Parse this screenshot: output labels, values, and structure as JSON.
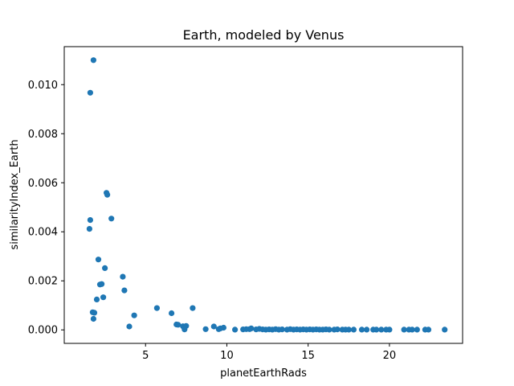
{
  "chart_data": {
    "type": "scatter",
    "title": "Earth, modeled by Venus",
    "xlabel": "planetEarthRads",
    "ylabel": "similarityIndex_Earth",
    "xlim": [
      0.0,
      24.5
    ],
    "ylim": [
      -0.00055,
      0.01155
    ],
    "xticks": [
      5,
      10,
      15,
      20
    ],
    "xtick_labels": [
      "5",
      "10",
      "15",
      "20"
    ],
    "yticks": [
      0.0,
      0.002,
      0.004,
      0.006,
      0.008,
      0.01
    ],
    "ytick_labels": [
      "0.000",
      "0.002",
      "0.004",
      "0.006",
      "0.008",
      "0.010"
    ],
    "grid": false,
    "legend": "none",
    "point_color": "#1f77b4",
    "points": [
      [
        1.8,
        0.011
      ],
      [
        1.6,
        0.00967
      ],
      [
        1.6,
        0.00448
      ],
      [
        1.55,
        0.00412
      ],
      [
        2.6,
        0.00559
      ],
      [
        2.65,
        0.00551
      ],
      [
        2.9,
        0.00454
      ],
      [
        2.1,
        0.00287
      ],
      [
        2.5,
        0.00252
      ],
      [
        3.6,
        0.00217
      ],
      [
        2.2,
        0.00185
      ],
      [
        2.3,
        0.00187
      ],
      [
        3.7,
        0.00161
      ],
      [
        2.4,
        0.00133
      ],
      [
        2.0,
        0.00124
      ],
      [
        1.75,
        0.00072
      ],
      [
        1.85,
        0.0007
      ],
      [
        1.8,
        0.00045
      ],
      [
        4.3,
        0.00059
      ],
      [
        4.0,
        0.00014
      ],
      [
        5.7,
        0.00089
      ],
      [
        6.6,
        0.00068
      ],
      [
        7.9,
        0.00089
      ],
      [
        6.9,
        0.00022
      ],
      [
        7.0,
        0.00021
      ],
      [
        7.3,
        0.00015
      ],
      [
        7.5,
        0.00016
      ],
      [
        7.4,
        2e-05
      ],
      [
        8.7,
        3e-05
      ],
      [
        9.2,
        0.00014
      ],
      [
        9.5,
        3e-05
      ],
      [
        9.6,
        6e-05
      ],
      [
        9.8,
        9e-05
      ],
      [
        10.5,
        1e-05
      ],
      [
        11.0,
        2e-05
      ],
      [
        11.2,
        3e-05
      ],
      [
        11.4,
        3e-05
      ],
      [
        11.5,
        6e-05
      ],
      [
        11.8,
        2e-05
      ],
      [
        12.0,
        4e-05
      ],
      [
        12.2,
        2e-05
      ],
      [
        12.4,
        1e-05
      ],
      [
        12.6,
        2e-05
      ],
      [
        12.8,
        1e-05
      ],
      [
        13.0,
        3e-05
      ],
      [
        13.2,
        1e-05
      ],
      [
        13.4,
        2e-05
      ],
      [
        13.7,
        1e-05
      ],
      [
        13.9,
        3e-05
      ],
      [
        14.1,
        1e-05
      ],
      [
        14.3,
        2e-05
      ],
      [
        14.5,
        1e-05
      ],
      [
        14.7,
        2e-05
      ],
      [
        14.9,
        1e-05
      ],
      [
        15.1,
        2e-05
      ],
      [
        15.3,
        1e-05
      ],
      [
        15.5,
        2e-05
      ],
      [
        15.7,
        1e-05
      ],
      [
        15.9,
        1e-05
      ],
      [
        16.1,
        2e-05
      ],
      [
        16.3,
        1e-05
      ],
      [
        16.6,
        1e-05
      ],
      [
        16.8,
        2e-05
      ],
      [
        17.1,
        1e-05
      ],
      [
        17.3,
        1e-05
      ],
      [
        17.5,
        1e-05
      ],
      [
        17.8,
        1e-05
      ],
      [
        18.3,
        1e-05
      ],
      [
        18.6,
        1e-05
      ],
      [
        19.0,
        1e-05
      ],
      [
        19.2,
        1e-05
      ],
      [
        19.5,
        1e-05
      ],
      [
        19.8,
        1e-05
      ],
      [
        20.0,
        1e-05
      ],
      [
        20.9,
        1e-05
      ],
      [
        21.2,
        1e-05
      ],
      [
        21.4,
        1e-05
      ],
      [
        21.7,
        1e-05
      ],
      [
        22.2,
        1e-05
      ],
      [
        22.4,
        1e-05
      ],
      [
        23.4,
        1e-05
      ]
    ]
  }
}
